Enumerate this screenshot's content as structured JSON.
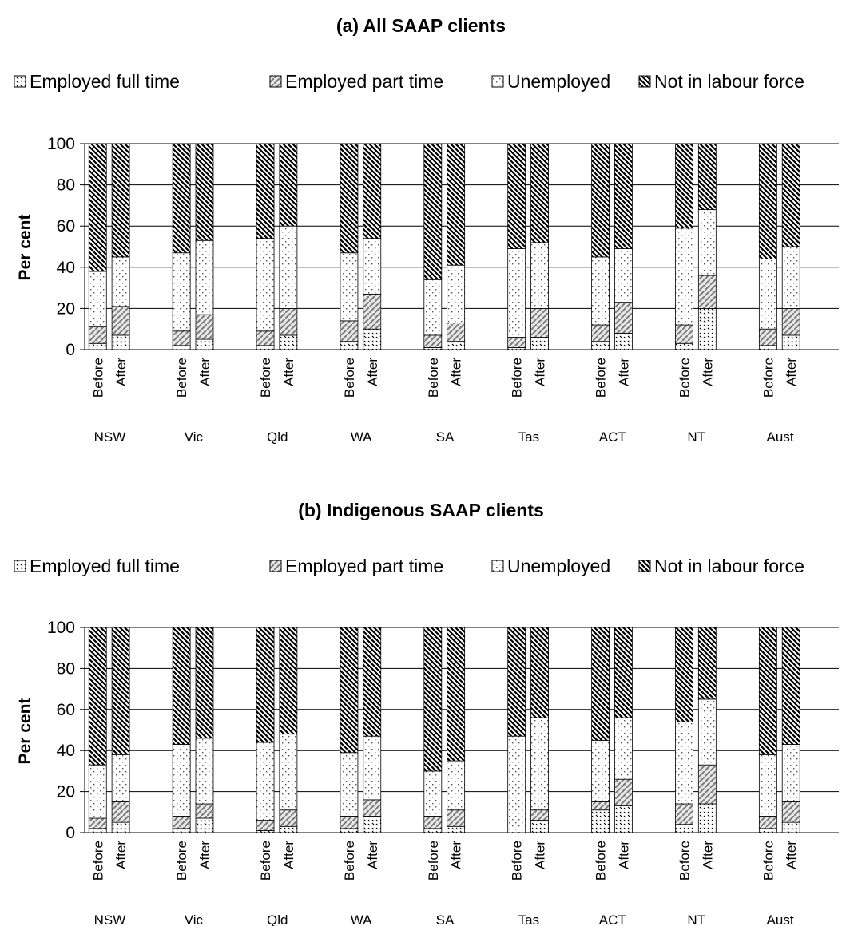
{
  "chart_data": [
    {
      "type": "bar",
      "stacked": true,
      "title": "(a) All SAAP clients",
      "ylabel": "Per cent",
      "ylim": [
        0,
        100
      ],
      "yticks": [
        0,
        20,
        40,
        60,
        80,
        100
      ],
      "grid": true,
      "legend_position": "top",
      "groups": [
        "NSW",
        "Vic",
        "Qld",
        "WA",
        "SA",
        "Tas",
        "ACT",
        "NT",
        "Aust"
      ],
      "bar_labels": [
        "Before",
        "After"
      ],
      "series": [
        {
          "name": "Employed full time",
          "values": [
            [
              3,
              7
            ],
            [
              2,
              5
            ],
            [
              2,
              7
            ],
            [
              4,
              10
            ],
            [
              1,
              4
            ],
            [
              1,
              6
            ],
            [
              4,
              8
            ],
            [
              3,
              20
            ],
            [
              2,
              7
            ]
          ]
        },
        {
          "name": "Employed part time",
          "values": [
            [
              8,
              14
            ],
            [
              7,
              12
            ],
            [
              7,
              13
            ],
            [
              10,
              17
            ],
            [
              6,
              9
            ],
            [
              5,
              14
            ],
            [
              8,
              15
            ],
            [
              9,
              16
            ],
            [
              8,
              13
            ]
          ]
        },
        {
          "name": "Unemployed",
          "values": [
            [
              27,
              24
            ],
            [
              38,
              36
            ],
            [
              45,
              40
            ],
            [
              33,
              27
            ],
            [
              27,
              28
            ],
            [
              43,
              32
            ],
            [
              33,
              26
            ],
            [
              47,
              32
            ],
            [
              34,
              30
            ]
          ]
        },
        {
          "name": "Not in labour force",
          "values": [
            [
              62,
              55
            ],
            [
              53,
              47
            ],
            [
              46,
              40
            ],
            [
              53,
              46
            ],
            [
              66,
              59
            ],
            [
              51,
              48
            ],
            [
              55,
              51
            ],
            [
              41,
              32
            ],
            [
              56,
              50
            ]
          ]
        }
      ]
    },
    {
      "type": "bar",
      "stacked": true,
      "title": "(b) Indigenous SAAP clients",
      "ylabel": "Per cent",
      "ylim": [
        0,
        100
      ],
      "yticks": [
        0,
        20,
        40,
        60,
        80,
        100
      ],
      "grid": true,
      "legend_position": "top",
      "groups": [
        "NSW",
        "Vic",
        "Qld",
        "WA",
        "SA",
        "Tas",
        "ACT",
        "NT",
        "Aust"
      ],
      "bar_labels": [
        "Before",
        "After"
      ],
      "series": [
        {
          "name": "Employed full time",
          "values": [
            [
              2,
              5
            ],
            [
              2,
              7
            ],
            [
              1,
              3
            ],
            [
              2,
              8
            ],
            [
              2,
              3
            ],
            [
              0,
              6
            ],
            [
              11,
              13
            ],
            [
              4,
              14
            ],
            [
              2,
              5
            ]
          ]
        },
        {
          "name": "Employed part time",
          "values": [
            [
              5,
              10
            ],
            [
              6,
              7
            ],
            [
              5,
              8
            ],
            [
              6,
              8
            ],
            [
              6,
              8
            ],
            [
              0,
              5
            ],
            [
              4,
              13
            ],
            [
              10,
              19
            ],
            [
              6,
              10
            ]
          ]
        },
        {
          "name": "Unemployed",
          "values": [
            [
              26,
              23
            ],
            [
              35,
              32
            ],
            [
              38,
              37
            ],
            [
              31,
              31
            ],
            [
              22,
              24
            ],
            [
              47,
              45
            ],
            [
              30,
              30
            ],
            [
              40,
              32
            ],
            [
              30,
              28
            ]
          ]
        },
        {
          "name": "Not in labour force",
          "values": [
            [
              67,
              62
            ],
            [
              57,
              54
            ],
            [
              56,
              52
            ],
            [
              61,
              53
            ],
            [
              70,
              65
            ],
            [
              53,
              44
            ],
            [
              55,
              44
            ],
            [
              46,
              35
            ],
            [
              62,
              57
            ]
          ]
        }
      ]
    }
  ],
  "series_patterns": [
    "fulltime",
    "parttime",
    "unemployed",
    "notinlf"
  ],
  "colors": {
    "ink": "#000000",
    "background": "#ffffff",
    "grid": "#000000"
  }
}
